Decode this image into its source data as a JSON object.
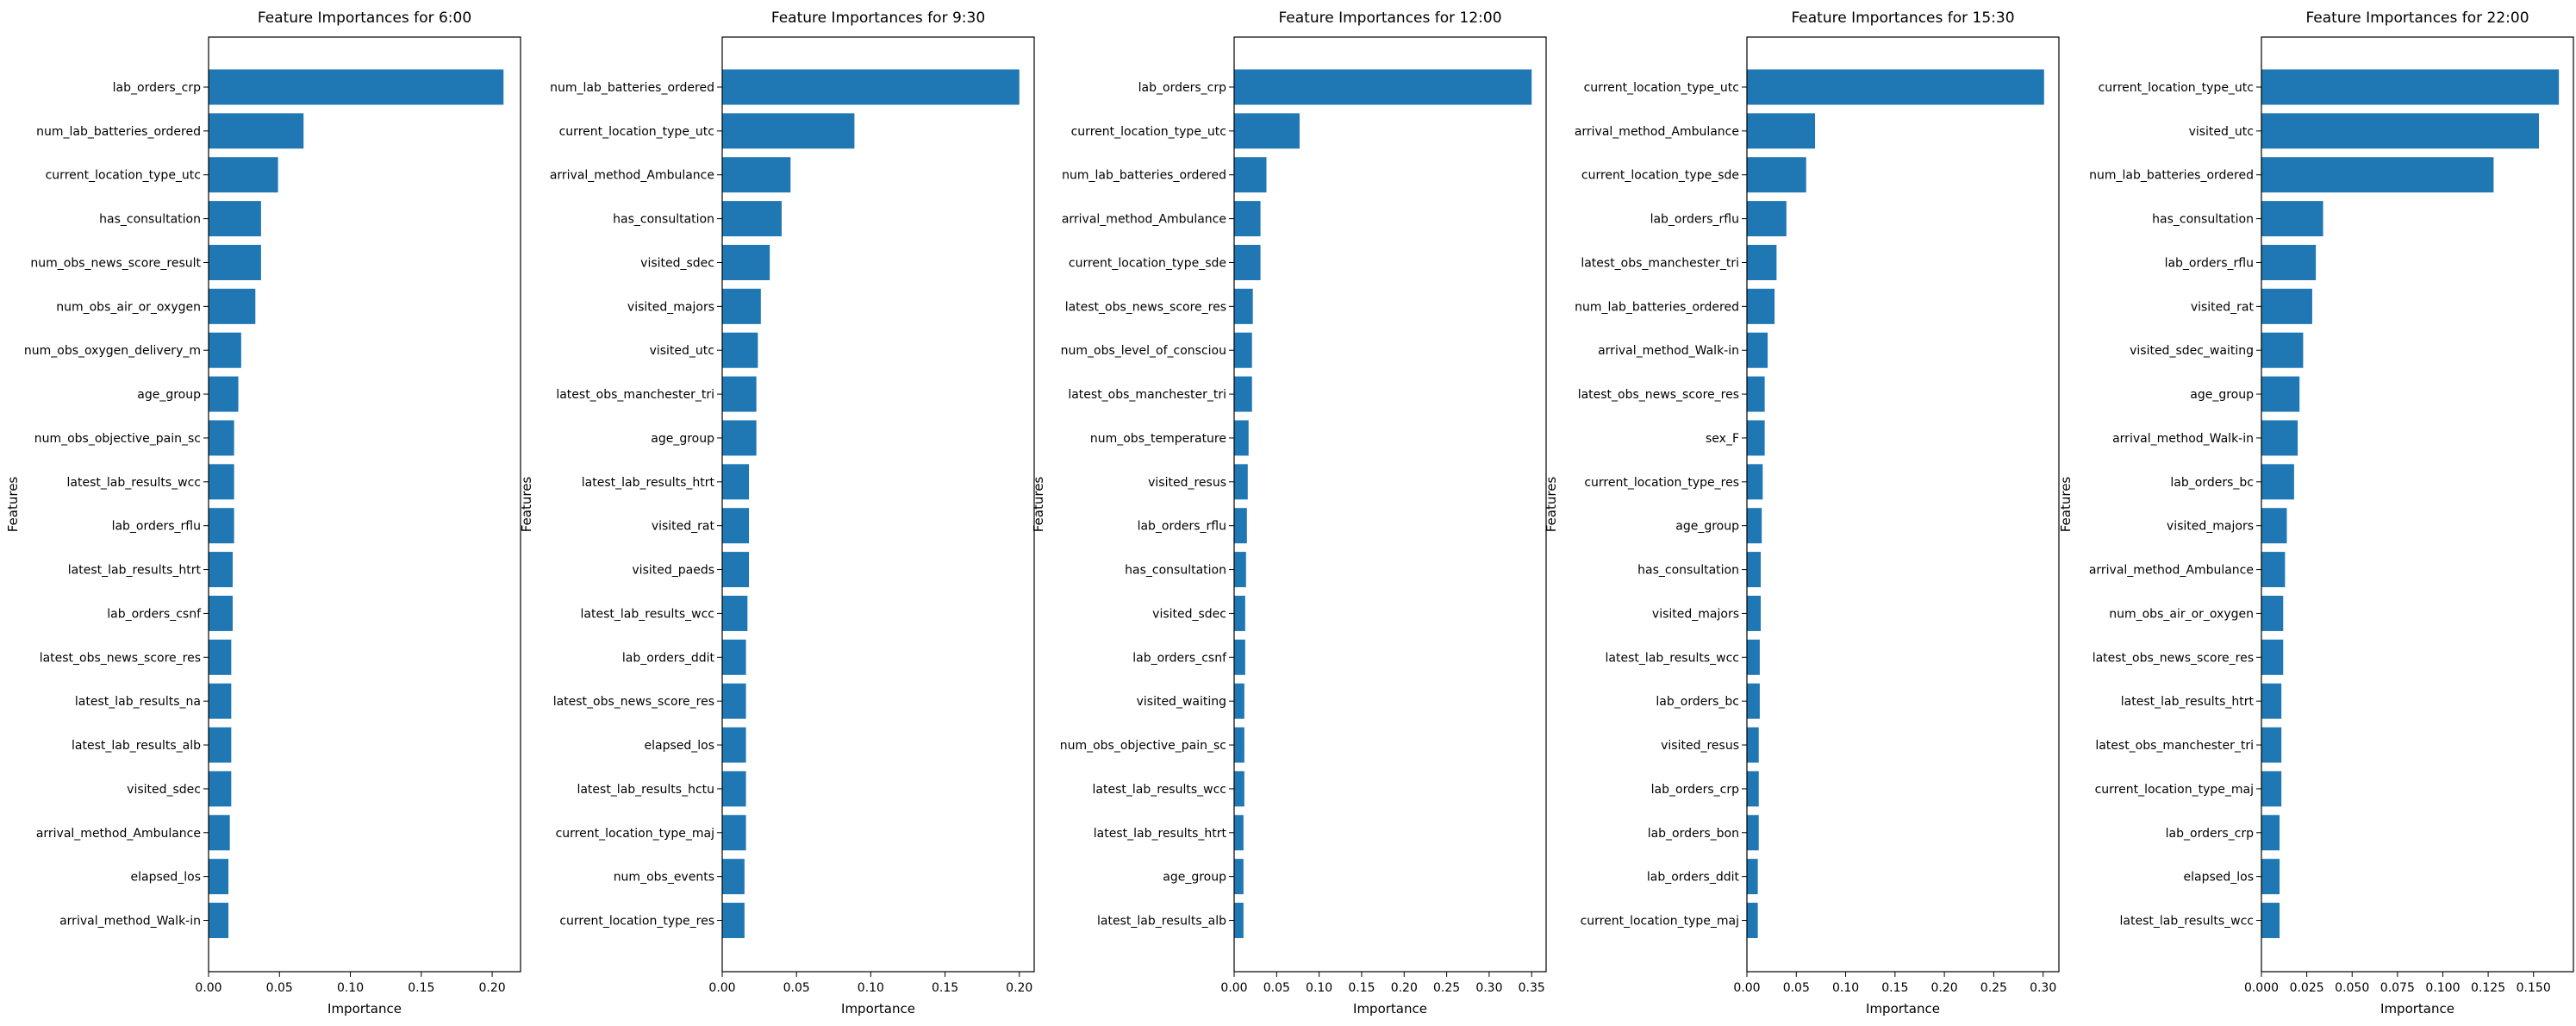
{
  "chart_data": [
    {
      "type": "bar",
      "orientation": "horizontal",
      "title": "Feature Importances for 6:00",
      "xlabel": "Importance",
      "ylabel": "Features",
      "xlim": [
        0,
        0.22
      ],
      "xticks": [
        "0.00",
        "0.05",
        "0.10",
        "0.15",
        "0.20"
      ],
      "bar_color": "#1f77b4",
      "grid": false,
      "categories": [
        "lab_orders_crp",
        "num_lab_batteries_ordered",
        "current_location_type_utc",
        "has_consultation",
        "num_obs_news_score_result",
        "num_obs_air_or_oxygen",
        "num_obs_oxygen_delivery_m",
        "age_group",
        "num_obs_objective_pain_sc",
        "latest_lab_results_wcc",
        "lab_orders_rflu",
        "latest_lab_results_htrt",
        "lab_orders_csnf",
        "latest_obs_news_score_res",
        "latest_lab_results_na",
        "latest_lab_results_alb",
        "visited_sdec",
        "arrival_method_Ambulance",
        "elapsed_los",
        "arrival_method_Walk-in"
      ],
      "values": [
        0.208,
        0.067,
        0.049,
        0.037,
        0.037,
        0.033,
        0.023,
        0.021,
        0.018,
        0.018,
        0.018,
        0.017,
        0.017,
        0.016,
        0.016,
        0.016,
        0.016,
        0.015,
        0.014,
        0.014
      ]
    },
    {
      "type": "bar",
      "orientation": "horizontal",
      "title": "Feature Importances for 9:30",
      "xlabel": "Importance",
      "ylabel": "Features",
      "xlim": [
        0,
        0.21
      ],
      "xticks": [
        "0.00",
        "0.05",
        "0.10",
        "0.15",
        "0.20"
      ],
      "bar_color": "#1f77b4",
      "grid": false,
      "categories": [
        "num_lab_batteries_ordered",
        "current_location_type_utc",
        "arrival_method_Ambulance",
        "has_consultation",
        "visited_sdec",
        "visited_majors",
        "visited_utc",
        "latest_obs_manchester_tri",
        "age_group",
        "latest_lab_results_htrt",
        "visited_rat",
        "visited_paeds",
        "latest_lab_results_wcc",
        "lab_orders_ddit",
        "latest_obs_news_score_res",
        "elapsed_los",
        "latest_lab_results_hctu",
        "current_location_type_maj",
        "num_obs_events",
        "current_location_type_res"
      ],
      "values": [
        0.2,
        0.089,
        0.046,
        0.04,
        0.032,
        0.026,
        0.024,
        0.023,
        0.023,
        0.018,
        0.018,
        0.018,
        0.017,
        0.016,
        0.016,
        0.016,
        0.016,
        0.016,
        0.015,
        0.015
      ]
    },
    {
      "type": "bar",
      "orientation": "horizontal",
      "title": "Feature Importances for 12:00",
      "xlabel": "Importance",
      "ylabel": "Features",
      "xlim": [
        0,
        0.367
      ],
      "xticks": [
        "0.00",
        "0.05",
        "0.10",
        "0.15",
        "0.20",
        "0.25",
        "0.30",
        "0.35"
      ],
      "bar_color": "#1f77b4",
      "grid": false,
      "categories": [
        "lab_orders_crp",
        "current_location_type_utc",
        "num_lab_batteries_ordered",
        "arrival_method_Ambulance",
        "current_location_type_sde",
        "latest_obs_news_score_res",
        "num_obs_level_of_consciou",
        "latest_obs_manchester_tri",
        "num_obs_temperature",
        "visited_resus",
        "lab_orders_rflu",
        "has_consultation",
        "visited_sdec",
        "lab_orders_csnf",
        "visited_waiting",
        "num_obs_objective_pain_sc",
        "latest_lab_results_wcc",
        "latest_lab_results_htrt",
        "age_group",
        "latest_lab_results_alb"
      ],
      "values": [
        0.35,
        0.077,
        0.038,
        0.031,
        0.031,
        0.022,
        0.021,
        0.021,
        0.017,
        0.016,
        0.015,
        0.014,
        0.013,
        0.013,
        0.012,
        0.012,
        0.012,
        0.011,
        0.011,
        0.011
      ]
    },
    {
      "type": "bar",
      "orientation": "horizontal",
      "title": "Feature Importances for 15:30",
      "xlabel": "Importance",
      "ylabel": "Features",
      "xlim": [
        0,
        0.316
      ],
      "xticks": [
        "0.00",
        "0.05",
        "0.10",
        "0.15",
        "0.20",
        "0.25",
        "0.30"
      ],
      "bar_color": "#1f77b4",
      "grid": false,
      "categories": [
        "current_location_type_utc",
        "arrival_method_Ambulance",
        "current_location_type_sde",
        "lab_orders_rflu",
        "latest_obs_manchester_tri",
        "num_lab_batteries_ordered",
        "arrival_method_Walk-in",
        "latest_obs_news_score_res",
        "sex_F",
        "current_location_type_res",
        "age_group",
        "has_consultation",
        "visited_majors",
        "latest_lab_results_wcc",
        "lab_orders_bc",
        "visited_resus",
        "lab_orders_crp",
        "lab_orders_bon",
        "lab_orders_ddit",
        "current_location_type_maj"
      ],
      "values": [
        0.301,
        0.069,
        0.06,
        0.04,
        0.03,
        0.028,
        0.021,
        0.018,
        0.018,
        0.016,
        0.015,
        0.014,
        0.014,
        0.013,
        0.013,
        0.012,
        0.012,
        0.012,
        0.011,
        0.011
      ]
    },
    {
      "type": "bar",
      "orientation": "horizontal",
      "title": "Feature Importances for 22:00",
      "xlabel": "Importance",
      "ylabel": "Features",
      "xlim": [
        0,
        0.172
      ],
      "xticks": [
        "0.000",
        "0.025",
        "0.050",
        "0.075",
        "0.100",
        "0.125",
        "0.150"
      ],
      "bar_color": "#1f77b4",
      "grid": false,
      "categories": [
        "current_location_type_utc",
        "visited_utc",
        "num_lab_batteries_ordered",
        "has_consultation",
        "lab_orders_rflu",
        "visited_rat",
        "visited_sdec_waiting",
        "age_group",
        "arrival_method_Walk-in",
        "lab_orders_bc",
        "visited_majors",
        "arrival_method_Ambulance",
        "num_obs_air_or_oxygen",
        "latest_obs_news_score_res",
        "latest_lab_results_htrt",
        "latest_obs_manchester_tri",
        "current_location_type_maj",
        "lab_orders_crp",
        "elapsed_los",
        "latest_lab_results_wcc"
      ],
      "values": [
        0.164,
        0.153,
        0.128,
        0.034,
        0.03,
        0.028,
        0.023,
        0.021,
        0.02,
        0.018,
        0.014,
        0.013,
        0.012,
        0.012,
        0.011,
        0.011,
        0.011,
        0.01,
        0.01,
        0.01
      ]
    }
  ]
}
